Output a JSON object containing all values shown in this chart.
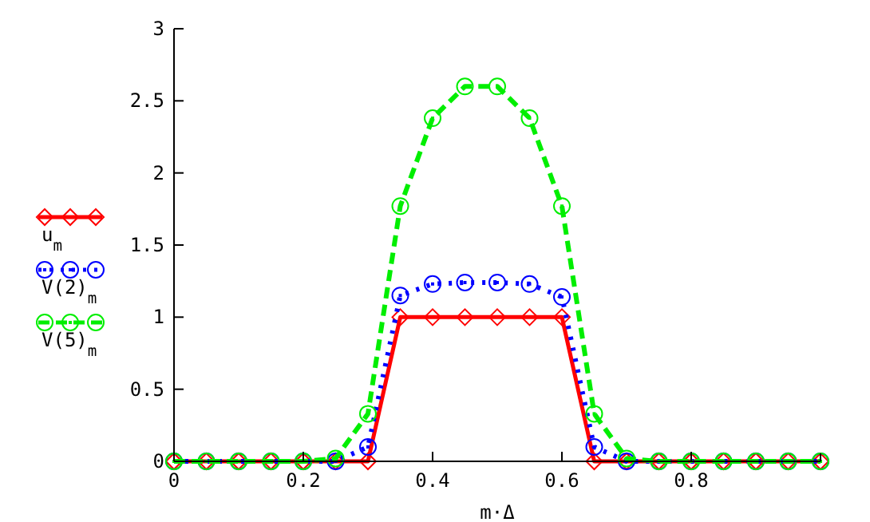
{
  "chart_data": {
    "type": "line",
    "xlabel": "m·Δ",
    "x": [
      0,
      0.05,
      0.1,
      0.15,
      0.2,
      0.25,
      0.3,
      0.35,
      0.4,
      0.45,
      0.5,
      0.55,
      0.6,
      0.65,
      0.7,
      0.75,
      0.8,
      0.85,
      0.9,
      0.95,
      1
    ],
    "series": [
      {
        "name": "u$_{m}$",
        "color": "#ff0000",
        "marker": "diamond",
        "line_style": "solid",
        "values": [
          0,
          0,
          0,
          0,
          0,
          0,
          0,
          1,
          1,
          1,
          1,
          1,
          1,
          0,
          0,
          0,
          0,
          0,
          0,
          0,
          0
        ]
      },
      {
        "name": "V(2)$_{m}$",
        "color": "#0000ff",
        "marker": "circle",
        "line_style": "dotted",
        "values": [
          0,
          0,
          0,
          0,
          0,
          0,
          0.1,
          1.15,
          1.23,
          1.24,
          1.24,
          1.23,
          1.14,
          0.1,
          0,
          0,
          0,
          0,
          0,
          0,
          0
        ]
      },
      {
        "name": "V(5)$_{m}$",
        "color": "#00ee00",
        "marker": "circle",
        "line_style": "dashed",
        "values": [
          0,
          0,
          0,
          0,
          0,
          0.02,
          0.33,
          1.77,
          2.38,
          2.6,
          2.6,
          2.38,
          1.77,
          0.33,
          0.02,
          0,
          0,
          0,
          0,
          0,
          0
        ]
      }
    ],
    "xlim": [
      0,
      1
    ],
    "xticks": [
      0,
      0.2,
      0.4,
      0.6,
      0.8
    ],
    "ylim": [
      0,
      3
    ],
    "yticks": [
      0,
      0.5,
      1,
      1.5,
      2,
      2.5,
      3
    ],
    "grid": false,
    "legend": "left"
  }
}
